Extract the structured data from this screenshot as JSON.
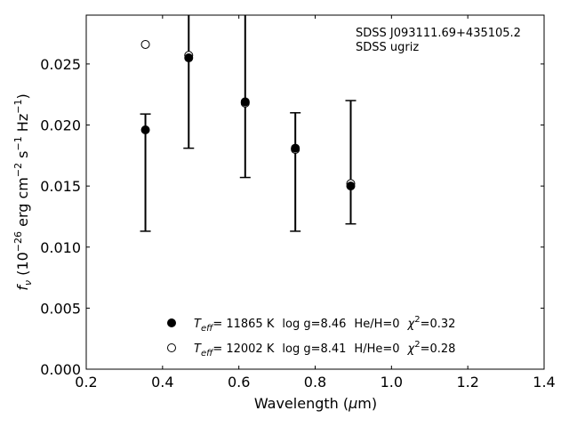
{
  "chart_data": {
    "type": "scatter",
    "xlabel": "Wavelength",
    "xlabel_unit_prefix": "μ",
    "xlabel_unit": "m",
    "ylabel": {
      "symbol": "f",
      "symbol_sub": "ν",
      "open": "(10",
      "exp1": "−26",
      "mid1": " erg cm",
      "exp2": "−2",
      "mid2": " s",
      "exp3": "−1",
      "mid3": " Hz",
      "exp4": "−1",
      "close": ")"
    },
    "xlim": [
      0.2,
      1.4
    ],
    "ylim": [
      0.0,
      0.029
    ],
    "xticks": [
      "0.2",
      "0.4",
      "0.6",
      "0.8",
      "1.0",
      "1.2",
      "1.4"
    ],
    "yticks": [
      "0.000",
      "0.005",
      "0.010",
      "0.015",
      "0.020",
      "0.025"
    ],
    "grid": false,
    "legend_placement": "lower-center",
    "annotations": [
      "SDSS J093111.69+435105.2",
      "SDSS ugriz"
    ],
    "observed": {
      "x": [
        0.3551,
        0.4686,
        0.6166,
        0.748,
        0.8932
      ],
      "y_low": [
        0.0113,
        0.0181,
        0.0157,
        0.0113,
        0.0119
      ],
      "y_high": [
        0.0209,
        0.029,
        0.029,
        0.021,
        0.022
      ]
    },
    "series": [
      {
        "marker": "filled-circle",
        "x": [
          0.3551,
          0.4686,
          0.6166,
          0.748,
          0.8932
        ],
        "y": [
          0.0196,
          0.0255,
          0.0219,
          0.0181,
          0.015
        ],
        "legend": {
          "t_symbol": "T",
          "t_sub": "eff",
          "t_value": "= 11865 K",
          "logg": "log g=8.46",
          "comp": "He/H=0",
          "chi_symbol": "χ",
          "chi_sup": "2",
          "chi_value": "=0.32"
        }
      },
      {
        "marker": "open-circle",
        "x": [
          0.3551,
          0.4686,
          0.6166,
          0.748,
          0.8932
        ],
        "y": [
          0.0266,
          0.0257,
          0.0218,
          0.018,
          0.0152
        ],
        "legend": {
          "t_symbol": "T",
          "t_sub": "eff",
          "t_value": "= 12002 K",
          "logg": "log g=8.41",
          "comp": "H/He=0",
          "chi_symbol": "χ",
          "chi_sup": "2",
          "chi_value": "=0.28"
        }
      }
    ]
  }
}
